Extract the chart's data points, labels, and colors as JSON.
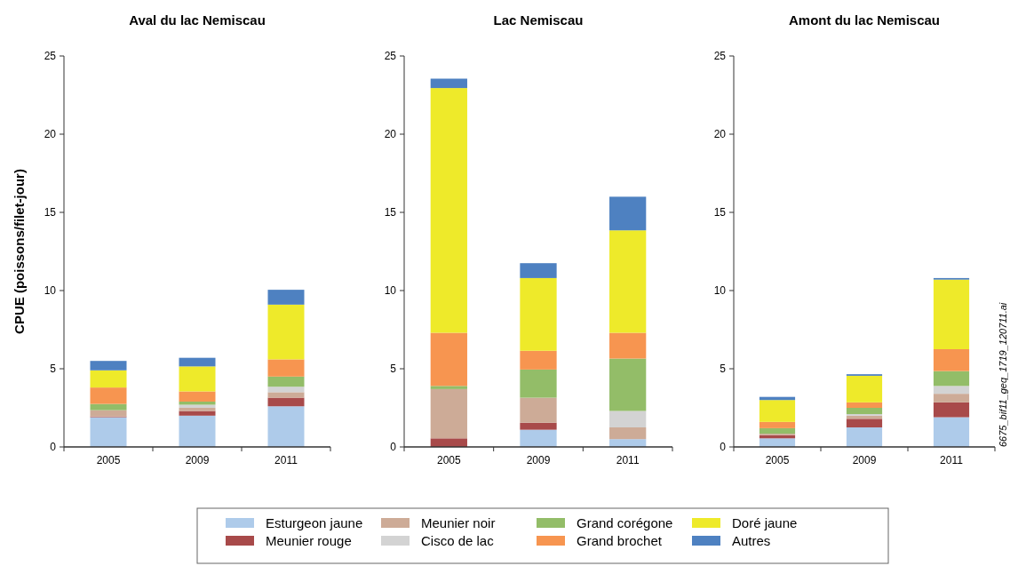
{
  "chart_data": [
    {
      "type": "bar",
      "title": "Aval du lac Nemiscau",
      "ylabel": "CPUE (poissons/filet-jour)",
      "categories": [
        "2005",
        "2009",
        "2011"
      ],
      "stacked": true,
      "ylim": [
        0,
        25
      ],
      "yticks": [
        0,
        5,
        10,
        15,
        20,
        25
      ],
      "legend": "bottom",
      "series": [
        {
          "name": "Esturgeon jaune",
          "color": "#aecbea",
          "values": [
            1.9,
            2.0,
            2.6
          ]
        },
        {
          "name": "Meunier rouge",
          "color": "#a84a4a",
          "values": [
            0.05,
            0.3,
            0.55
          ]
        },
        {
          "name": "Meunier noir",
          "color": "#cdab97",
          "values": [
            0.4,
            0.2,
            0.35
          ]
        },
        {
          "name": "Cisco de lac",
          "color": "#d3d3d3",
          "values": [
            0,
            0.2,
            0.35
          ]
        },
        {
          "name": "Grand corégone",
          "color": "#93bd68",
          "values": [
            0.4,
            0.2,
            0.65
          ]
        },
        {
          "name": "Grand brochet",
          "color": "#f79550",
          "values": [
            1.05,
            0.65,
            1.1
          ]
        },
        {
          "name": "Doré jaune",
          "color": "#eeea2a",
          "values": [
            1.1,
            1.6,
            3.5
          ]
        },
        {
          "name": "Autres",
          "color": "#4e81c1",
          "values": [
            0.6,
            0.55,
            0.95
          ]
        }
      ]
    },
    {
      "type": "bar",
      "title": "Lac Nemiscau",
      "categories": [
        "2005",
        "2009",
        "2011"
      ],
      "stacked": true,
      "ylim": [
        0,
        25
      ],
      "yticks": [
        0,
        5,
        10,
        15,
        20,
        25
      ],
      "series": [
        {
          "color": "#aecbea",
          "values": [
            0,
            1.1,
            0.5
          ]
        },
        {
          "color": "#a84a4a",
          "values": [
            0.55,
            0.45,
            0
          ]
        },
        {
          "color": "#cdab97",
          "values": [
            3.15,
            1.6,
            0.75
          ]
        },
        {
          "color": "#d3d3d3",
          "values": [
            0,
            0,
            1.05
          ]
        },
        {
          "color": "#93bd68",
          "values": [
            0.2,
            1.8,
            3.35
          ]
        },
        {
          "color": "#f79550",
          "values": [
            3.4,
            1.2,
            1.65
          ]
        },
        {
          "color": "#eeea2a",
          "values": [
            15.65,
            4.65,
            6.55
          ]
        },
        {
          "color": "#4e81c1",
          "values": [
            0.6,
            0.95,
            2.15
          ]
        }
      ]
    },
    {
      "type": "bar",
      "title": "Amont du lac Nemiscau",
      "categories": [
        "2005",
        "2009",
        "2011"
      ],
      "stacked": true,
      "ylim": [
        0,
        25
      ],
      "yticks": [
        0,
        5,
        10,
        15,
        20,
        25
      ],
      "annotations": [
        "6675_bif11_geq_1719_120711.ai"
      ],
      "series": [
        {
          "color": "#aecbea",
          "values": [
            0.55,
            1.25,
            1.9
          ]
        },
        {
          "color": "#a84a4a",
          "values": [
            0.2,
            0.55,
            0.95
          ]
        },
        {
          "color": "#cdab97",
          "values": [
            0.1,
            0.2,
            0.55
          ]
        },
        {
          "color": "#d3d3d3",
          "values": [
            0,
            0.1,
            0.5
          ]
        },
        {
          "color": "#93bd68",
          "values": [
            0.35,
            0.4,
            0.95
          ]
        },
        {
          "color": "#f79550",
          "values": [
            0.4,
            0.35,
            1.4
          ]
        },
        {
          "color": "#eeea2a",
          "values": [
            1.4,
            1.7,
            4.45
          ]
        },
        {
          "color": "#4e81c1",
          "values": [
            0.2,
            0.1,
            0.1
          ]
        }
      ]
    }
  ]
}
